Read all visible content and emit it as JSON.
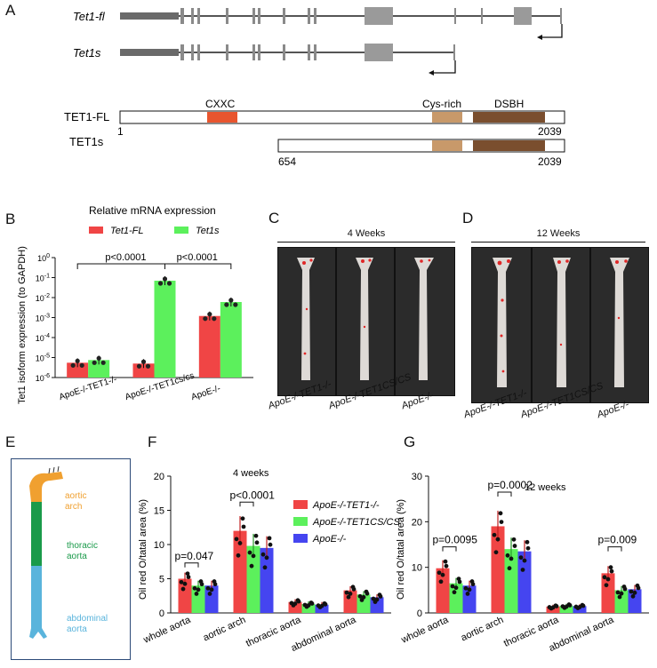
{
  "panels": {
    "A": "A",
    "B": "B",
    "C": "C",
    "D": "D",
    "E": "E",
    "F": "F",
    "G": "G"
  },
  "panelA": {
    "transcript1": "Tet1-fl",
    "transcript2": "Tet1s",
    "protein1": "TET1-FL",
    "protein2": "TET1s",
    "domain_cxxc": "CXXC",
    "domain_cys": "Cys-rich",
    "domain_dsbh": "DSBH",
    "fl_start": "1",
    "fl_end": "2039",
    "s_start": "654",
    "s_end": "2039"
  },
  "panelC": {
    "title": "4 Weeks",
    "labels": [
      "ApoE-/-TET1-/-",
      "ApoE-/-TET1CS/CS",
      "ApoE-/-"
    ]
  },
  "panelD": {
    "title": "12 Weeks",
    "labels": [
      "ApoE-/-TET1-/-",
      "ApoE-/-TET1CS/CS",
      "ApoE-/-"
    ]
  },
  "panelE": {
    "arch": "aortic arch",
    "thoracic": "thoracic aorta",
    "abdominal": "abdominal aorta"
  },
  "colors": {
    "red": "#f04545",
    "green": "#5cf05c",
    "blue": "#4545f0",
    "arch": "#f0a030",
    "thoracic": "#1a9a4a",
    "abdominal": "#5ab4dc"
  },
  "chart_data": [
    {
      "type": "bar",
      "panel": "B",
      "title": "Relative mRNA expression",
      "ylabel": "Tet1 isoform expression (to GAPDH)",
      "yscale": "log",
      "ylim": [
        1e-06,
        1
      ],
      "yticks": [
        "10^0",
        "10^-1",
        "10^-2",
        "10^-3",
        "10^-4",
        "10^-5",
        "10^-6"
      ],
      "categories": [
        "ApoE-/-TET1-/-",
        "ApoE-/-TET1cs/cs",
        "ApoE-/-"
      ],
      "series": [
        {
          "name": "Tet1-FL",
          "values": [
            5.5e-06,
            5e-06,
            0.0012
          ]
        },
        {
          "name": "Tet1s",
          "values": [
            7.5e-06,
            0.07,
            0.006
          ]
        }
      ],
      "annotations": [
        "p<0.0001",
        "p<0.0001"
      ]
    },
    {
      "type": "bar",
      "panel": "F",
      "title": "4 weeks",
      "ylabel": "Oil red O/tatal area (%)",
      "ylim": [
        0,
        20
      ],
      "yticks": [
        "0",
        "5",
        "10",
        "15",
        "20"
      ],
      "categories": [
        "whole aorta",
        "aortic arch",
        "thoracic aorta",
        "abdominal aorta"
      ],
      "series": [
        {
          "name": "ApoE-/-TET1-/-",
          "values": [
            5.0,
            12.0,
            1.6,
            3.3
          ]
        },
        {
          "name": "ApoE-/-TET1CS/CS",
          "values": [
            4.0,
            9.8,
            1.3,
            2.7
          ]
        },
        {
          "name": "ApoE-/-",
          "values": [
            4.0,
            9.5,
            1.2,
            2.3
          ]
        }
      ],
      "annotations": [
        "p=0.047",
        "p<0.0001"
      ]
    },
    {
      "type": "bar",
      "panel": "G",
      "title": "12 weeks",
      "ylabel": "Oil red O/tatal area (%)",
      "ylim": [
        0,
        30
      ],
      "yticks": [
        "0",
        "10",
        "20",
        "30"
      ],
      "categories": [
        "whole aorta",
        "aortic arch",
        "thoracic aorta",
        "abdominal aorta"
      ],
      "series": [
        {
          "name": "ApoE-/-TET1-/-",
          "values": [
            9.8,
            19.0,
            1.4,
            8.7
          ]
        },
        {
          "name": "ApoE-/-TET1CS/CS",
          "values": [
            6.5,
            14.0,
            1.6,
            5.0
          ]
        },
        {
          "name": "ApoE-/-",
          "values": [
            6.0,
            13.5,
            1.5,
            5.2
          ]
        }
      ],
      "annotations": [
        "p=0.0095",
        "p=0.0002",
        "p=0.009"
      ]
    }
  ]
}
